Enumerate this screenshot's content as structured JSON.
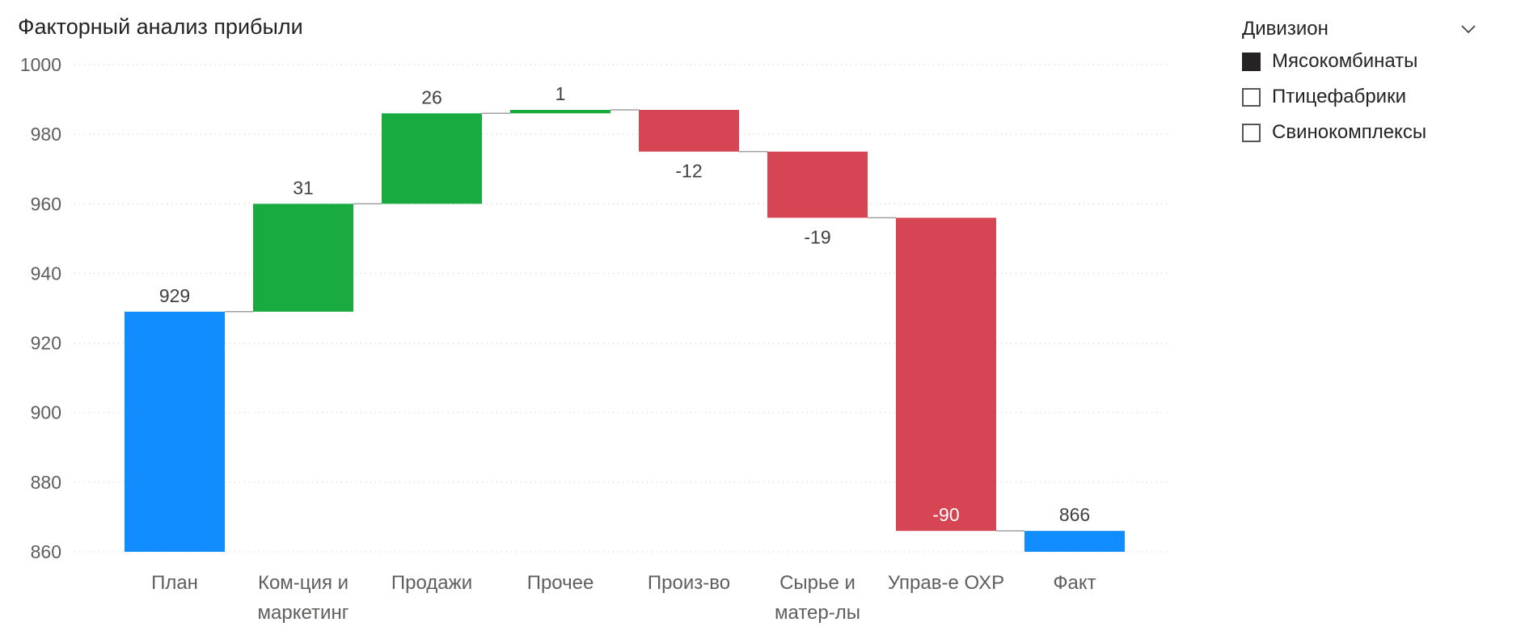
{
  "chart_data": {
    "type": "waterfall",
    "title": "Факторный анализ прибыли",
    "ylim": [
      860,
      1000
    ],
    "yticks": [
      860,
      880,
      900,
      920,
      940,
      960,
      980,
      1000
    ],
    "grid": true,
    "categories": [
      {
        "label": [
          "План"
        ],
        "kind": "total",
        "value": 929,
        "display": "929"
      },
      {
        "label": [
          "Ком-ция и",
          "маркетинг"
        ],
        "kind": "increase",
        "value": 31,
        "display": "31"
      },
      {
        "label": [
          "Продажи"
        ],
        "kind": "increase",
        "value": 26,
        "display": "26"
      },
      {
        "label": [
          "Прочее"
        ],
        "kind": "increase",
        "value": 1,
        "display": "1"
      },
      {
        "label": [
          "Произ-во"
        ],
        "kind": "decrease",
        "value": -12,
        "display": "-12"
      },
      {
        "label": [
          "Сырье и",
          "матер-лы"
        ],
        "kind": "decrease",
        "value": -19,
        "display": "-19"
      },
      {
        "label": [
          "Управ-е ОХР"
        ],
        "kind": "decrease",
        "value": -90,
        "display": "-90"
      },
      {
        "label": [
          "Факт"
        ],
        "kind": "total",
        "value": 866,
        "display": "866"
      }
    ],
    "colors": {
      "total": "#118DFF",
      "increase": "#1AAB40",
      "decrease": "#D64554"
    }
  },
  "slicer": {
    "title": "Дивизион",
    "expand_icon": "chevron-down-icon",
    "items": [
      {
        "label": "Мясокомбинаты",
        "checked": true
      },
      {
        "label": "Птицефабрики",
        "checked": false
      },
      {
        "label": "Свинокомплексы",
        "checked": false
      }
    ]
  }
}
